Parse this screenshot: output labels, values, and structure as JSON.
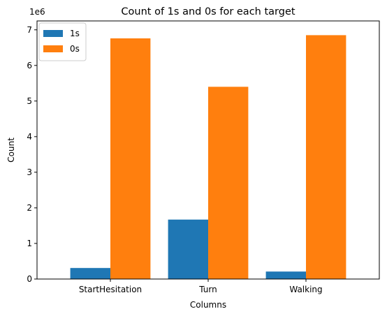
{
  "chart_data": {
    "type": "bar",
    "title": "Count of 1s and 0s for each target",
    "xlabel": "Columns",
    "ylabel": "Count",
    "y_multiplier_label": "1e6",
    "categories": [
      "StartHesitation",
      "Turn",
      "Walking"
    ],
    "series": [
      {
        "name": "1s",
        "color": "#1f77b4",
        "values": [
          0.31,
          1.67,
          0.21
        ]
      },
      {
        "name": "0s",
        "color": "#ff7f0e",
        "values": [
          6.76,
          5.4,
          6.85
        ]
      }
    ],
    "ylim": [
      0,
      7.25
    ],
    "yticks": [
      0,
      1,
      2,
      3,
      4,
      5,
      6,
      7
    ],
    "grid": false,
    "legend_position": "top-left"
  }
}
